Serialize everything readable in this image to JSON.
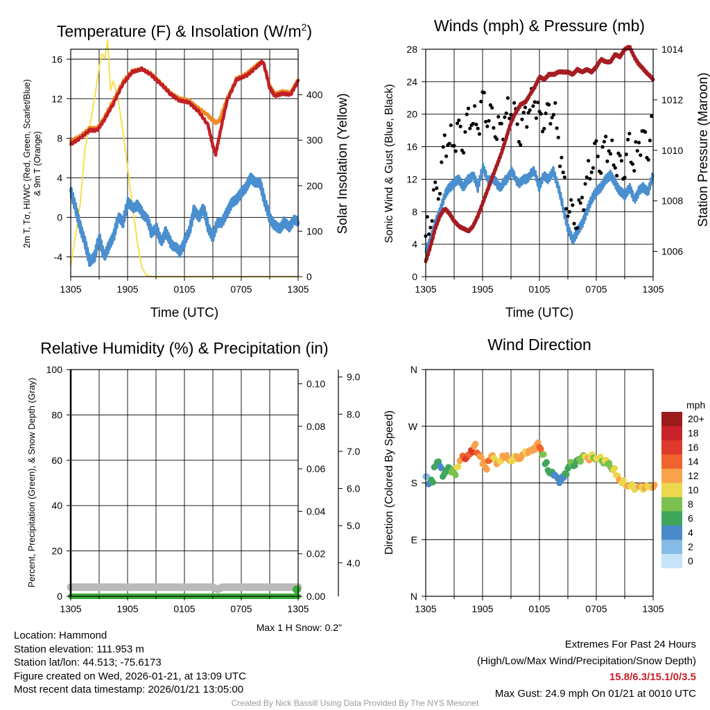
{
  "colors": {
    "red": "#c02026",
    "orange": "#f08a24",
    "blue": "#4a8fcf",
    "yellow": "#f4e04a",
    "maroon": "#a51d22",
    "green": "#3ca83a",
    "gray": "#b9b9b9",
    "black": "#000000"
  },
  "chart_data": [
    {
      "id": "temperature",
      "type": "line",
      "title": "Temperature (F) & Insolation (W/m2)",
      "title_main": "Temperature (F) & Insolation (W/m",
      "title_sup": "2",
      "title_end": ")",
      "xlabel": "Time (UTC)",
      "ylabel_line1": "2m T, Tσ, HI/WC (Red, Green, Scarlet/Blue)",
      "ylabel_line2": "& 9m T (Orange)",
      "y2label": "Solar Insolation (Yellow)",
      "ylim": [
        -6,
        17
      ],
      "y2lim": [
        0,
        500
      ],
      "yticks": [
        16,
        12,
        8,
        4,
        0,
        -4
      ],
      "y2ticks": [
        0,
        100,
        200,
        300,
        400
      ],
      "xticks": [
        "1305",
        "1905",
        "0105",
        "0705",
        "1305"
      ],
      "x_hours": [
        0,
        3,
        6,
        9,
        12,
        15,
        18,
        21,
        24
      ],
      "series": [
        {
          "name": "Solar Insolation",
          "color": "#f4e04a",
          "axis": "y2",
          "x": [
            0,
            0.5,
            1,
            1.5,
            2,
            2.5,
            3,
            3.3,
            3.6,
            3.9,
            4.2,
            4.5,
            5,
            5.5,
            6,
            6.5,
            7,
            7.5,
            8,
            8.5,
            9,
            24
          ],
          "values": [
            23,
            90,
            160,
            280,
            330,
            390,
            460,
            490,
            480,
            520,
            410,
            430,
            390,
            320,
            240,
            160,
            80,
            20,
            3,
            0,
            0,
            0
          ]
        },
        {
          "name": "9m T",
          "color": "#f08a24",
          "axis": "y",
          "x": [
            0,
            1,
            2,
            2.8,
            3.5,
            4.5,
            5.5,
            6.5,
            7.5,
            8.5,
            9.5,
            10.5,
            11.5,
            12.5,
            13.5,
            14.5,
            15,
            15.3,
            15.7,
            16.5,
            17.5,
            18.5,
            19.5,
            20.3,
            21,
            21.5,
            22.3,
            23.2,
            24
          ],
          "values": [
            7.7,
            8.2,
            9,
            9,
            10,
            11.8,
            13.7,
            14.8,
            15,
            14.5,
            13.6,
            12.6,
            12,
            11.8,
            11,
            10.3,
            9.8,
            9.6,
            9.8,
            12,
            14,
            14.5,
            15.3,
            15.8,
            13.3,
            12.5,
            12.7,
            12.6,
            13.9
          ]
        },
        {
          "name": "2m T",
          "color": "#c02026",
          "axis": "y",
          "x": [
            0,
            1,
            2,
            2.8,
            3.5,
            4.5,
            5.5,
            6.5,
            7.5,
            8.5,
            9.5,
            10.5,
            11.5,
            12.5,
            13.5,
            14.5,
            15,
            15.3,
            15.7,
            16.5,
            17.5,
            18.5,
            19.5,
            20.3,
            21,
            21.5,
            22.3,
            23.2,
            24
          ],
          "values": [
            7.4,
            8,
            8.8,
            8.8,
            9.8,
            11.5,
            13.5,
            14.7,
            15,
            14.4,
            13.5,
            12.5,
            11.8,
            11.6,
            10.7,
            9.3,
            7.2,
            6.4,
            8.3,
            11.8,
            13.9,
            14.3,
            15.1,
            15.8,
            13.1,
            12.3,
            12.5,
            12.4,
            13.8
          ]
        },
        {
          "name": "HI/WC",
          "color": "#4a8fcf",
          "axis": "y",
          "x": [
            0,
            0.5,
            1,
            1.5,
            2,
            2.5,
            3,
            3.5,
            4,
            4.5,
            5,
            5.5,
            6,
            6.5,
            7,
            7.5,
            8,
            8.5,
            9,
            9.5,
            10,
            10.5,
            11,
            11.5,
            12,
            12.5,
            13,
            13.5,
            14,
            14.5,
            15,
            15.5,
            16,
            16.5,
            17,
            17.5,
            18,
            18.5,
            19,
            19.5,
            20,
            20.5,
            21,
            21.5,
            22,
            22.5,
            23,
            23.5,
            24
          ],
          "values": [
            2.7,
            1,
            -1,
            -2.5,
            -4.5,
            -4,
            -2,
            -4,
            -3,
            -2,
            0,
            -0.5,
            1.5,
            1,
            1.2,
            0.5,
            0,
            -1.5,
            -1,
            -2.5,
            -1.5,
            -2.5,
            -3,
            -3.5,
            -2.5,
            -1.5,
            0.7,
            0,
            1,
            -1,
            -2,
            -0.5,
            -0.5,
            0.5,
            1.5,
            1.8,
            2.5,
            3,
            4,
            3.5,
            3.5,
            1.5,
            0,
            -0.8,
            -1.2,
            -0.5,
            -1,
            -0.3,
            -0.5
          ]
        }
      ]
    },
    {
      "id": "winds",
      "type": "line",
      "title": "Winds (mph) & Pressure (mb)",
      "xlabel": "Time (UTC)",
      "ylabel": "Sonic Wind & Gust (Blue, Black)",
      "y2label": "Station Pressure (Maroon)",
      "ylim": [
        0,
        28
      ],
      "y2lim": [
        1005,
        1014
      ],
      "yticks": [
        0,
        4,
        8,
        12,
        16,
        20,
        24,
        28
      ],
      "y2ticks": [
        1006,
        1008,
        1010,
        1012,
        1014
      ],
      "xticks": [
        "1305",
        "1905",
        "0105",
        "0705",
        "1305"
      ],
      "series": [
        {
          "name": "Sonic Wind",
          "color": "#4a8fcf",
          "axis": "y",
          "x": [
            0,
            0.5,
            1,
            1.5,
            2,
            2.5,
            3,
            3.5,
            4,
            4.5,
            5,
            5.5,
            6,
            6.5,
            7,
            7.5,
            8,
            8.5,
            9,
            9.5,
            10,
            10.5,
            11,
            11.5,
            12,
            12.5,
            13,
            13.5,
            14,
            14.5,
            15,
            15.5,
            16,
            16.5,
            17,
            17.5,
            18,
            18.5,
            19,
            19.5,
            20,
            20.5,
            21,
            21.5,
            22,
            22.5,
            23,
            23.5,
            24
          ],
          "values": [
            3,
            4.5,
            6.5,
            8,
            10,
            11,
            11.5,
            12,
            11,
            12,
            12.5,
            11,
            13.5,
            12,
            12,
            11.5,
            11,
            12,
            13,
            12,
            11.5,
            12,
            12.5,
            13,
            11,
            12.5,
            12,
            13,
            11,
            8.5,
            6,
            4.5,
            5.5,
            6.5,
            8,
            9.5,
            10.5,
            11,
            12,
            12.5,
            11.5,
            10.5,
            10,
            11,
            9.5,
            10.5,
            11,
            10.5,
            12.5
          ]
        },
        {
          "name": "Gust",
          "color": "#000000",
          "axis": "y",
          "style": "dots",
          "x": [
            0,
            0.5,
            1,
            1.5,
            2,
            2.5,
            3,
            3.5,
            4,
            4.5,
            5,
            5.5,
            6,
            6.5,
            7,
            7.5,
            8,
            8.5,
            9,
            9.5,
            10,
            10.5,
            11,
            11.5,
            12,
            12.5,
            13,
            13.5,
            14,
            14.5,
            15,
            15.5,
            16,
            16.5,
            17,
            17.5,
            18,
            18.5,
            19,
            19.5,
            20,
            20.5,
            21,
            21.5,
            22,
            22.5,
            23,
            23.5,
            24
          ],
          "values": [
            5,
            7,
            10,
            12,
            16,
            17,
            16.5,
            18,
            17,
            19,
            20,
            18,
            22,
            20,
            19,
            18.5,
            18,
            20,
            21,
            19,
            18,
            19.5,
            21,
            22,
            19,
            20,
            19.5,
            21,
            17,
            12,
            9,
            7,
            7.5,
            9,
            12,
            14,
            15,
            14.5,
            16,
            15.5,
            14,
            13.5,
            14,
            16,
            14,
            16.5,
            17,
            16,
            19
          ]
        },
        {
          "name": "Station Pressure",
          "color": "#a51d22",
          "axis": "y2",
          "x": [
            0,
            0.5,
            1,
            1.5,
            2,
            2.5,
            3,
            3.5,
            4,
            4.5,
            5,
            5.5,
            6,
            6.5,
            7,
            7.5,
            8,
            8.5,
            9,
            9.5,
            10,
            10.5,
            11,
            11.5,
            12,
            12.5,
            13,
            13.5,
            14,
            14.5,
            15,
            15.5,
            16,
            16.5,
            17,
            17.5,
            18,
            18.5,
            19,
            19.5,
            20,
            20.5,
            21,
            21.5,
            22,
            22.5,
            23,
            23.5,
            24
          ],
          "values": [
            1005.6,
            1006.2,
            1006.9,
            1007.4,
            1007.7,
            1007.5,
            1007.2,
            1007,
            1006.9,
            1006.8,
            1007,
            1007.4,
            1007.9,
            1008.4,
            1008.9,
            1009.4,
            1009.9,
            1010.5,
            1011.1,
            1011.5,
            1011.8,
            1011.9,
            1012.2,
            1012.5,
            1012.9,
            1012.8,
            1013,
            1013,
            1013.1,
            1013.1,
            1013.1,
            1013,
            1013.2,
            1013.1,
            1013.2,
            1013.1,
            1013.3,
            1013.6,
            1013.5,
            1013.5,
            1013.8,
            1013.7,
            1014,
            1014.1,
            1013.7,
            1013.4,
            1013.2,
            1013,
            1012.8
          ]
        }
      ]
    },
    {
      "id": "humidity",
      "type": "line",
      "title": "Relative Humidity (%) & Precipitation (in)",
      "ylabel": "Percent, Precipitation (Green), & Snow Depth (Gray)",
      "ylim": [
        0,
        100
      ],
      "y2lim": [
        0,
        0.1067
      ],
      "y3lim": [
        3.1,
        9.2
      ],
      "yticks": [
        0,
        20,
        40,
        60,
        80,
        100
      ],
      "y2ticks": [
        0.0,
        0.02,
        0.04,
        0.06,
        0.08,
        0.1
      ],
      "y2ticklabels": [
        "0.00",
        "0.02",
        "0.04",
        "0.06",
        "0.08",
        "0.10"
      ],
      "y3ticks": [
        4.0,
        5.0,
        6.0,
        7.0,
        8.0,
        9.0
      ],
      "y3ticklabels": [
        "4.0",
        "5.0",
        "6.0",
        "7.0",
        "8.0",
        "9.0"
      ],
      "xticks": [
        "1305",
        "1905",
        "0105",
        "0705",
        "1305"
      ],
      "snow_note": "Max 1 H Snow: 0.2\"",
      "series": [
        {
          "name": "Snow Depth",
          "color": "#b9b9b9",
          "axis": "y",
          "x": [
            0,
            3,
            6,
            9,
            15,
            15.5,
            16,
            18,
            21,
            24
          ],
          "values": [
            4,
            4,
            4,
            4,
            4,
            3,
            4,
            4,
            4,
            4
          ]
        },
        {
          "name": "Precipitation",
          "color": "#3ca83a",
          "axis": "y",
          "x": [
            0,
            6,
            12,
            18,
            24
          ],
          "values": [
            0,
            0,
            0,
            0,
            0
          ]
        }
      ]
    },
    {
      "id": "wind-direction",
      "type": "scatter",
      "title": "Wind Direction",
      "ylabel": "Direction (Colored By Speed)",
      "ylim": [
        0,
        360
      ],
      "yticks": [
        0,
        90,
        180,
        270,
        360
      ],
      "yticklabels": [
        "N",
        "E",
        "S",
        "W",
        "N"
      ],
      "xticks": [
        "1305",
        "1905",
        "0105",
        "0705",
        "1305"
      ],
      "colorbar": {
        "title": "mph",
        "labels": [
          "20+",
          "18",
          "16",
          "14",
          "12",
          "10",
          "8",
          "6",
          "4",
          "2",
          "0"
        ],
        "colors": [
          "#9b1b1e",
          "#c8222a",
          "#de3a2c",
          "#f0632c",
          "#f9a24c",
          "#ecd84f",
          "#7cc14e",
          "#3fa65c",
          "#4a8ac8",
          "#87bce6",
          "#c6e4f7"
        ]
      },
      "x": [
        0,
        0.3,
        0.6,
        0.9,
        1.2,
        1.5,
        1.8,
        2.1,
        2.4,
        2.7,
        3,
        3.3,
        3.6,
        3.9,
        4.2,
        4.5,
        4.8,
        5.1,
        5.4,
        5.7,
        6,
        6.3,
        6.6,
        6.9,
        7.2,
        7.5,
        7.8,
        8.1,
        8.4,
        8.7,
        9,
        9.3,
        9.6,
        9.9,
        10.2,
        10.5,
        10.8,
        11.1,
        11.4,
        11.7,
        12,
        12.3,
        12.6,
        12.9,
        13.2,
        13.5,
        13.8,
        14.1,
        14.4,
        14.7,
        15,
        15.3,
        15.6,
        15.9,
        16.2,
        16.5,
        16.8,
        17.1,
        17.4,
        17.7,
        18,
        18.3,
        18.6,
        18.9,
        19.2,
        19.5,
        19.8,
        20.1,
        20.4,
        20.7,
        21,
        21.3,
        21.6,
        21.9,
        22.2,
        22.5,
        22.8,
        23.1,
        23.4,
        23.7,
        24
      ],
      "values": [
        190,
        178,
        185,
        205,
        213,
        207,
        190,
        200,
        205,
        197,
        196,
        205,
        215,
        223,
        218,
        225,
        232,
        238,
        228,
        222,
        210,
        205,
        215,
        222,
        220,
        210,
        215,
        223,
        220,
        218,
        215,
        220,
        222,
        218,
        225,
        230,
        228,
        232,
        235,
        240,
        237,
        225,
        210,
        200,
        195,
        192,
        190,
        180,
        190,
        195,
        203,
        213,
        207,
        215,
        218,
        221,
        222,
        219,
        221,
        220,
        219,
        218,
        215,
        215,
        210,
        205,
        200,
        192,
        185,
        180,
        178,
        175,
        175,
        173,
        172,
        174,
        173,
        172,
        175,
        174,
        173
      ],
      "speeds": [
        3,
        4,
        6,
        6,
        6,
        5,
        7,
        7,
        6,
        9,
        9,
        10,
        12,
        14,
        16,
        14,
        17,
        13,
        14,
        12,
        13,
        12,
        15,
        12,
        10,
        12,
        11,
        12,
        13,
        12,
        10,
        11,
        13,
        12,
        12,
        11,
        12,
        12,
        12,
        13,
        14,
        8,
        7,
        6,
        6,
        5,
        4,
        4,
        5,
        6,
        7,
        8,
        7,
        7,
        8,
        8,
        10,
        12,
        11,
        9,
        10,
        10,
        9,
        10,
        9,
        9,
        10,
        11,
        12,
        11,
        11,
        12,
        10,
        11,
        11,
        12,
        11,
        12,
        11,
        11,
        13
      ]
    }
  ],
  "footer": {
    "location": "Location: Hammond",
    "elevation": "Station elevation: 111.953 m",
    "latlon": "Station lat/lon: 44.513; -75.6173",
    "created": "Figure created on Wed, 2026-01-21, at 13:09 UTC",
    "recent": "Most recent data timestamp: 2026/01/21 13:05:00",
    "extremes_title": "Extremes For Past 24 Hours",
    "extremes_legend": "(High/Low/Max Wind/Precipitation/Snow Depth)",
    "extremes_values": "15.8/6.3/15.1/0/3.5",
    "max_gust": "Max Gust: 24.9 mph On 01/21 at 0010 UTC",
    "credit": "Created By Nick Bassill Using Data Provided By The NYS Mesonet"
  }
}
